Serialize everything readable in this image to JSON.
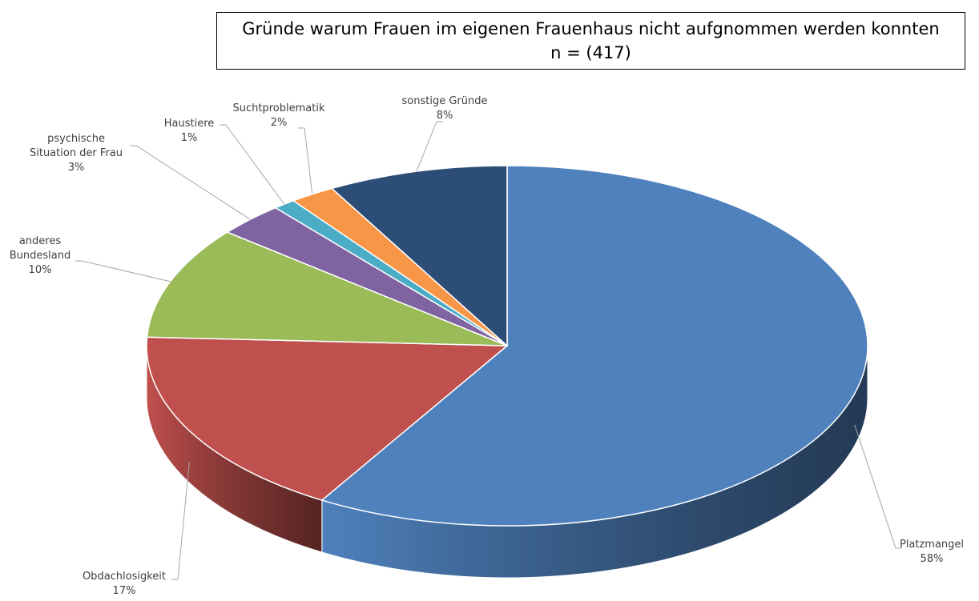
{
  "chart_data": {
    "type": "pie3d",
    "title": "Gründe warum Frauen im eigenen Frauenhaus nicht aufgnommen werden konnten",
    "subtitle": "n = (417)",
    "categories": [
      "Platzmangel",
      "Obdachlosigkeit",
      "anderes Bundesland",
      "psychische Situation der Frau",
      "Haustiere",
      "Suchtproblematik",
      "sonstige Gründe"
    ],
    "values": [
      58,
      17,
      10,
      3,
      1,
      2,
      8
    ],
    "value_labels": [
      "58%",
      "17%",
      "10%",
      "3%",
      "1%",
      "2%",
      "8%"
    ],
    "colors": [
      "#4f81bd",
      "#c0504d",
      "#9bbb59",
      "#8064a2",
      "#4bacc6",
      "#f79646",
      "#2c4d75"
    ]
  }
}
